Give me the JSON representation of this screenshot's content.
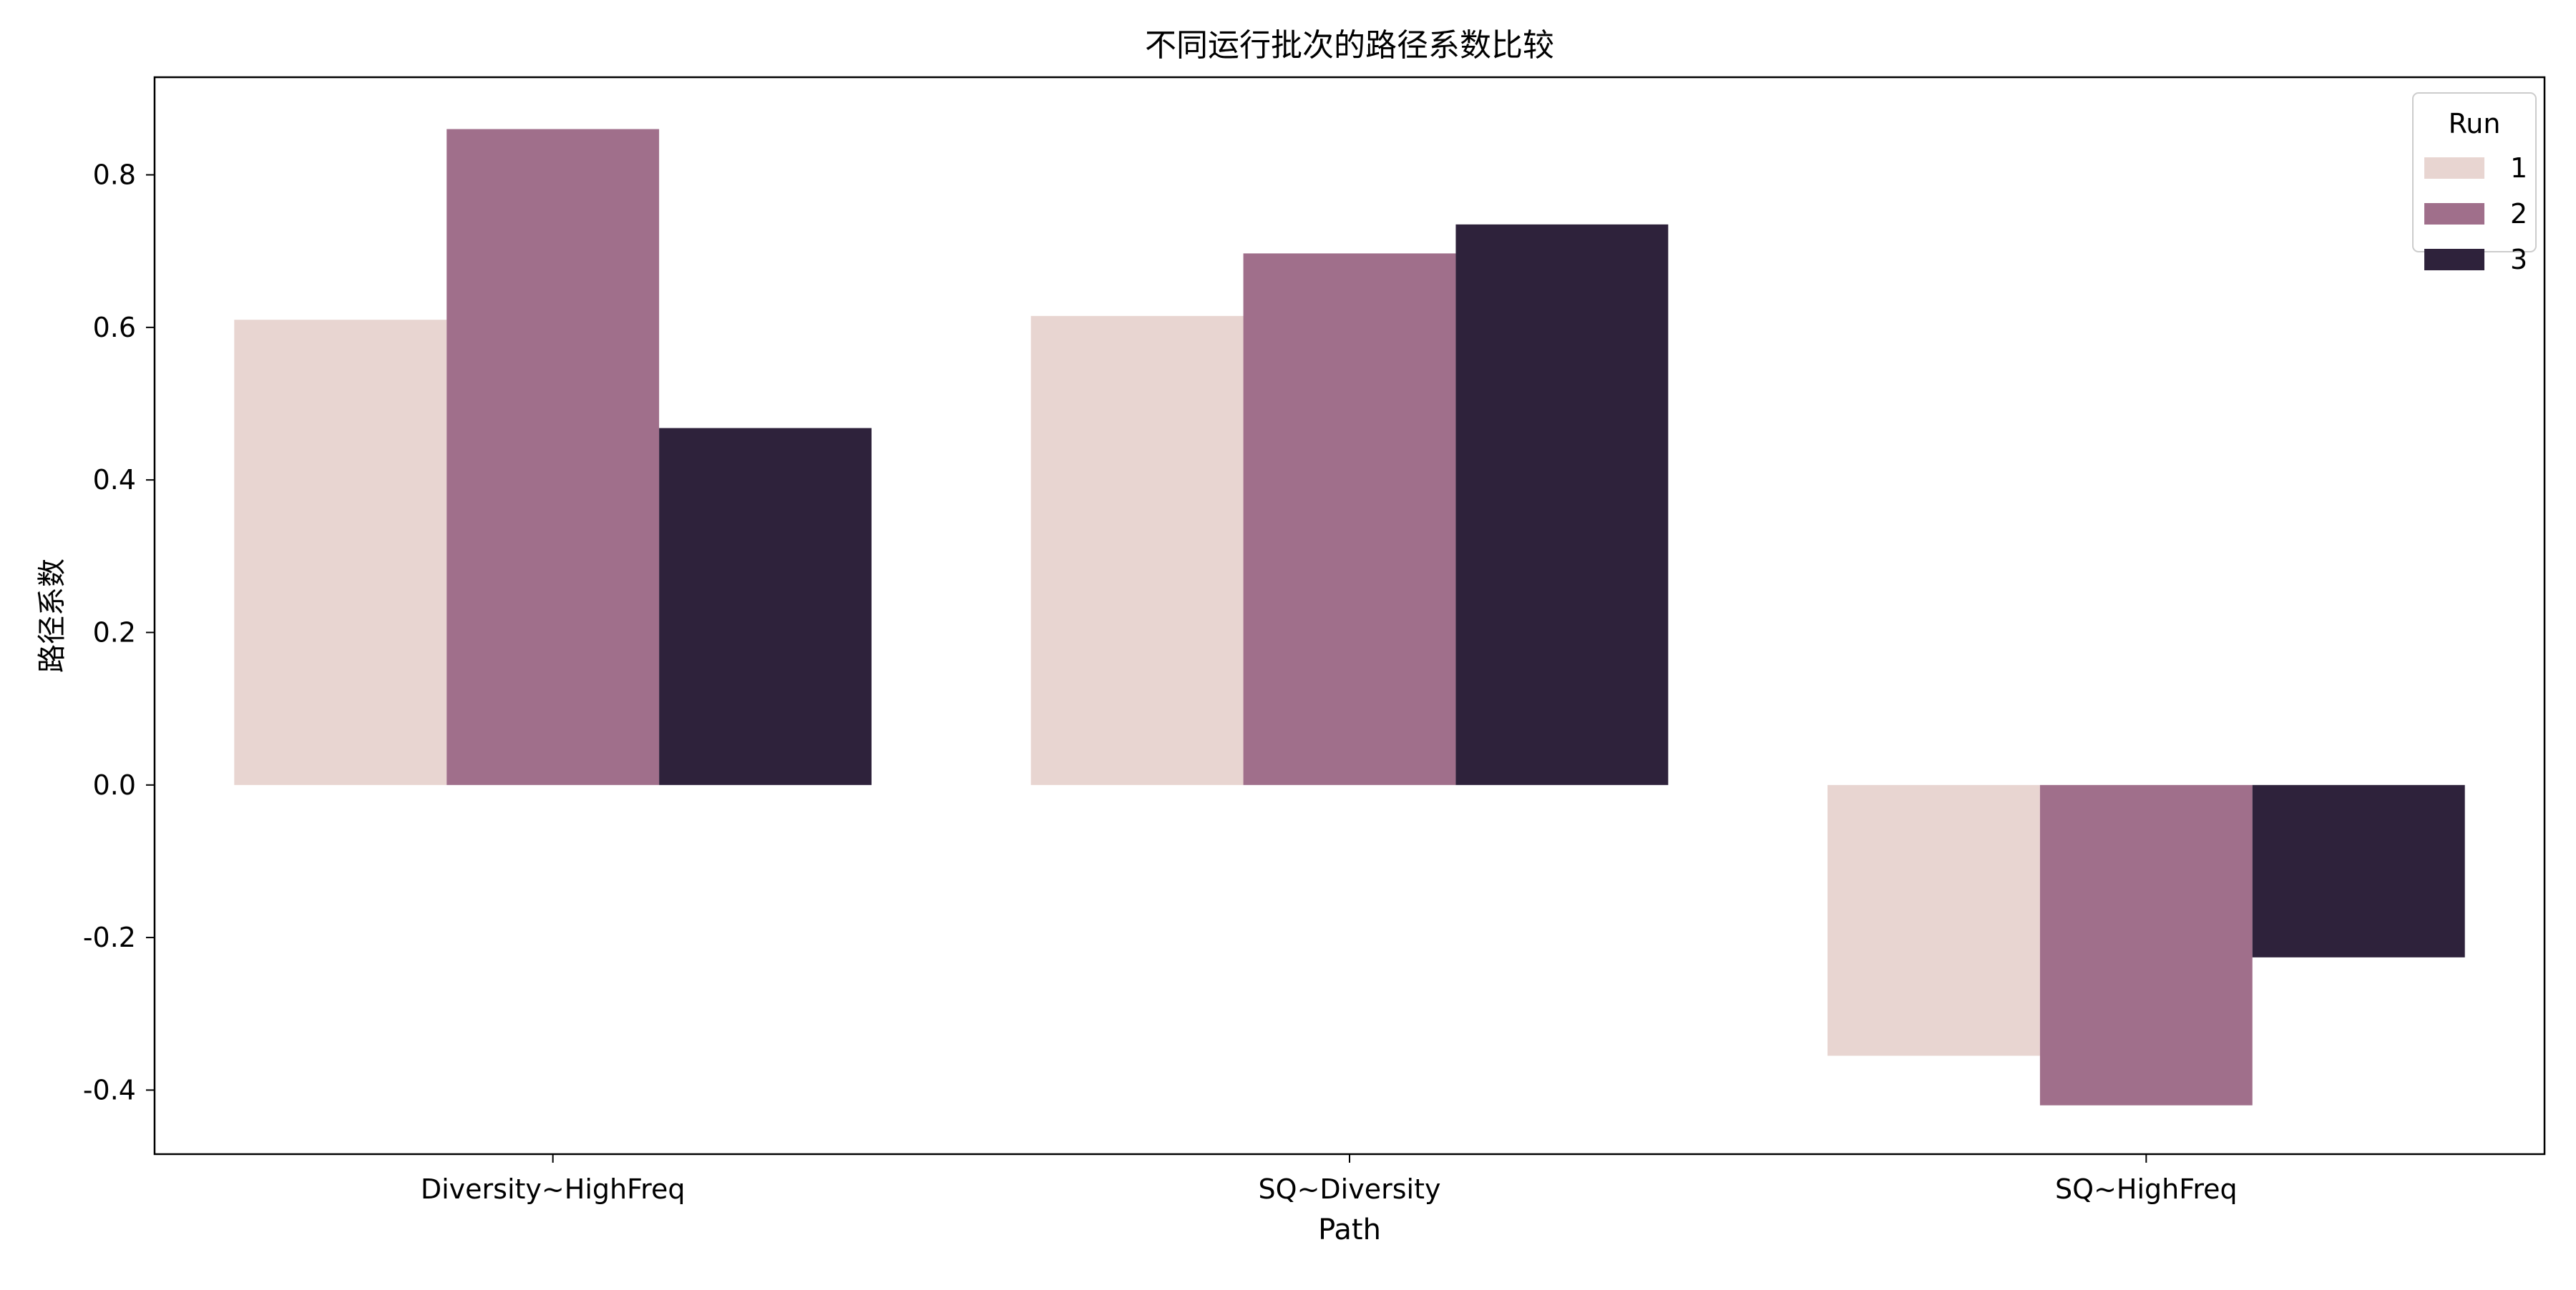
{
  "chart_data": {
    "type": "bar",
    "title": "不同运行批次的路径系数比较",
    "xlabel": "Path",
    "ylabel": "路径系数",
    "categories": [
      "Diversity~HighFreq",
      "SQ~Diversity",
      "SQ~HighFreq"
    ],
    "series": [
      {
        "name": "1",
        "values": [
          0.61,
          0.615,
          -0.355
        ],
        "color": "#e8d5d1"
      },
      {
        "name": "2",
        "values": [
          0.86,
          0.697,
          -0.42
        ],
        "color": "#a06f8b"
      },
      {
        "name": "3",
        "values": [
          0.468,
          0.735,
          -0.226
        ],
        "color": "#2e223b"
      }
    ],
    "ylim": [
      -0.484,
      0.928
    ],
    "yticks": [
      -0.4,
      -0.2,
      0.0,
      0.2,
      0.4,
      0.6,
      0.8
    ],
    "ytick_labels": [
      "-0.4",
      "-0.2",
      "0.0",
      "0.2",
      "0.4",
      "0.6",
      "0.8"
    ],
    "grid": false,
    "legend": {
      "title": "Run",
      "placement": "top-right"
    }
  }
}
